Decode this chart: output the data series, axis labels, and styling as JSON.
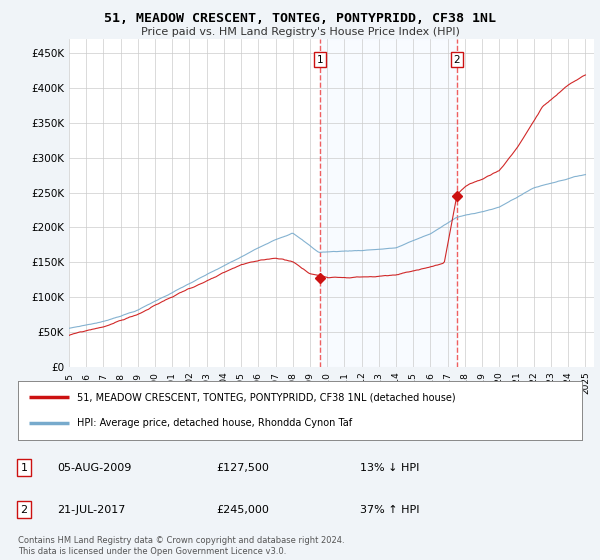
{
  "title": "51, MEADOW CRESCENT, TONTEG, PONTYPRIDD, CF38 1NL",
  "subtitle": "Price paid vs. HM Land Registry's House Price Index (HPI)",
  "ylabel_ticks": [
    "£0",
    "£50K",
    "£100K",
    "£150K",
    "£200K",
    "£250K",
    "£300K",
    "£350K",
    "£400K",
    "£450K"
  ],
  "ytick_values": [
    0,
    50000,
    100000,
    150000,
    200000,
    250000,
    300000,
    350000,
    400000,
    450000
  ],
  "ylim": [
    0,
    470000
  ],
  "xlim_start": 1995.0,
  "xlim_end": 2025.5,
  "transaction1_x": 2009.58,
  "transaction1_y": 127500,
  "transaction2_x": 2017.54,
  "transaction2_y": 245000,
  "transaction1_date": "05-AUG-2009",
  "transaction1_price": "£127,500",
  "transaction1_hpi": "13% ↓ HPI",
  "transaction2_date": "21-JUL-2017",
  "transaction2_price": "£245,000",
  "transaction2_hpi": "37% ↑ HPI",
  "red_line_color": "#cc1111",
  "blue_line_color": "#77aacc",
  "shade_color": "#ddeeff",
  "vline_color": "#ee4444",
  "legend_label_red": "51, MEADOW CRESCENT, TONTEG, PONTYPRIDD, CF38 1NL (detached house)",
  "legend_label_blue": "HPI: Average price, detached house, Rhondda Cynon Taf",
  "footer": "Contains HM Land Registry data © Crown copyright and database right 2024.\nThis data is licensed under the Open Government Licence v3.0.",
  "background_color": "#f0f4f8",
  "plot_bg_color": "#ffffff",
  "grid_color": "#cccccc"
}
